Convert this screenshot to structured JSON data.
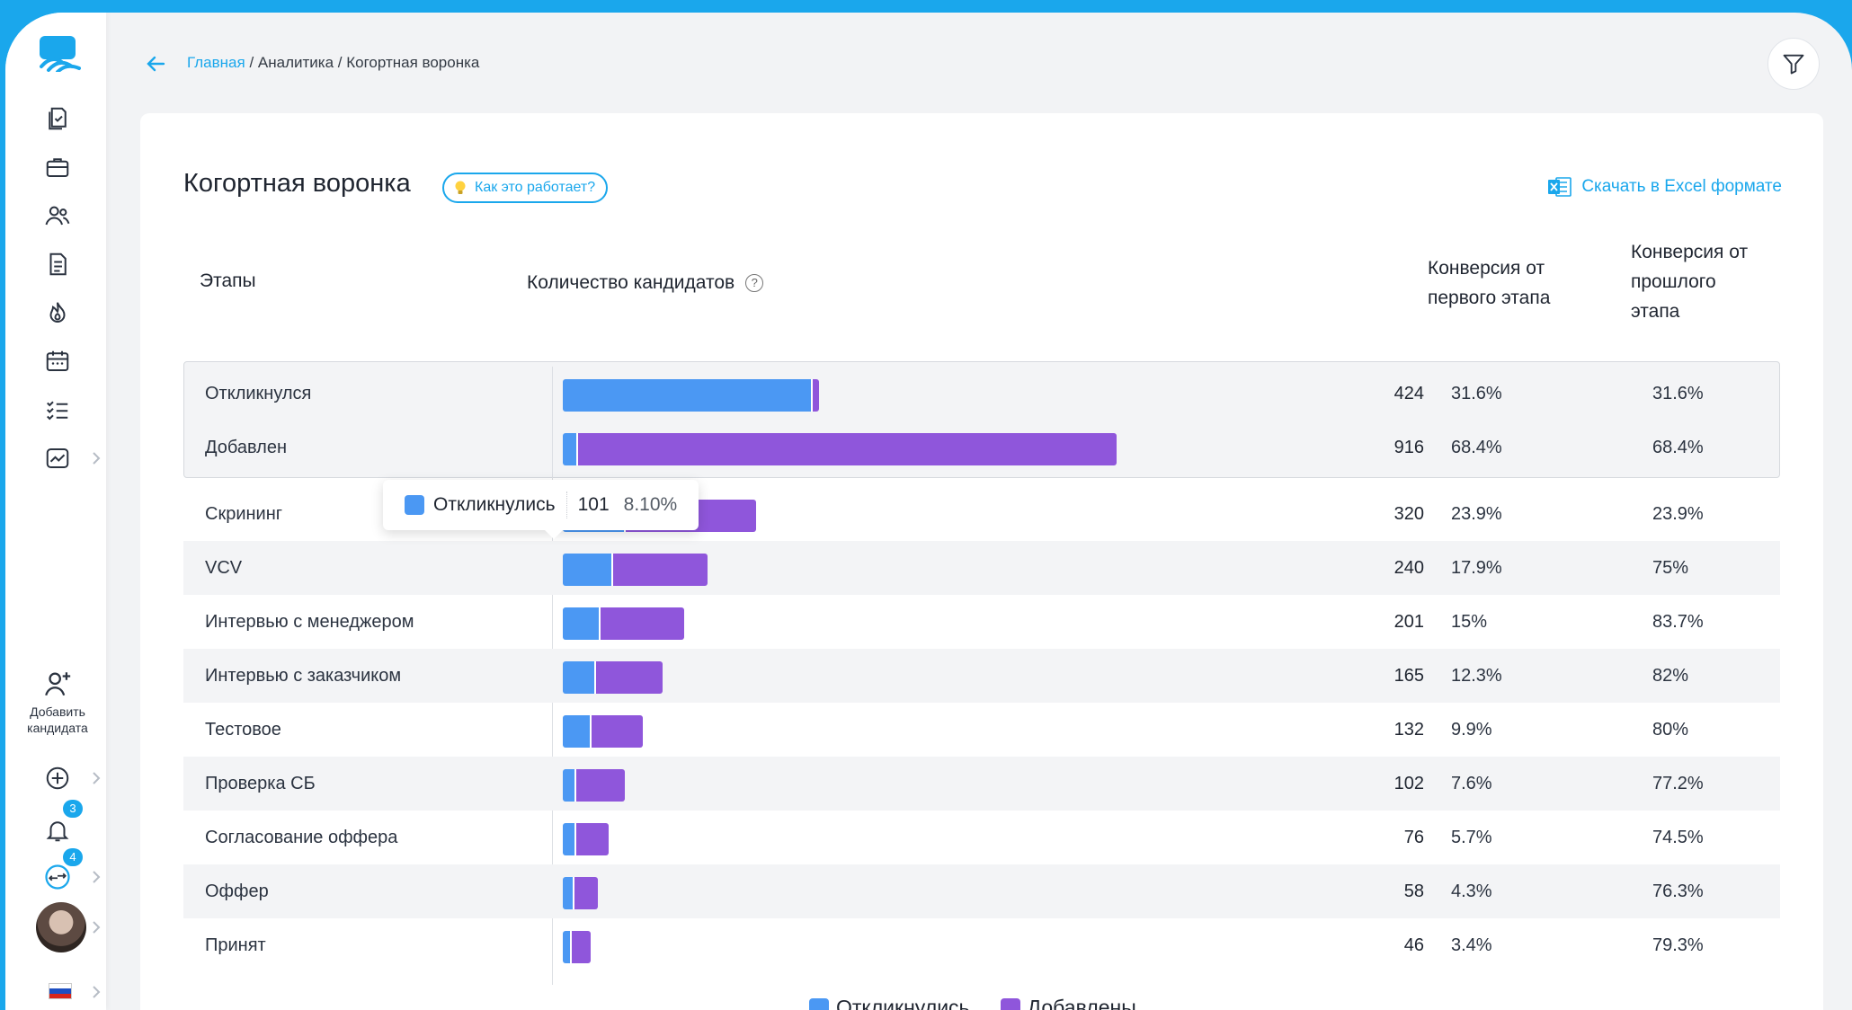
{
  "breadcrumb": {
    "home": "Главная",
    "sep1": " / ",
    "analytics": "Аналитика",
    "sep2": " / ",
    "current": "Когортная воронка"
  },
  "sidebar": {
    "add_candidate_label_1": "Добавить",
    "add_candidate_label_2": "кандидата",
    "notifications_badge": "3",
    "chat_badge": "4"
  },
  "page": {
    "title": "Когортная воронка",
    "how_it_works": "Как это работает?",
    "excel_download": "Скачать в Excel формате"
  },
  "table": {
    "header_stages": "Этапы",
    "header_count": "Количество кандидатов",
    "header_conv_first_1": "Конверсия от",
    "header_conv_first_2": "первого этапа",
    "header_conv_prev_1": "Конверсия от",
    "header_conv_prev_2": "прошлого",
    "header_conv_prev_3": "этапа"
  },
  "tooltip": {
    "label": "Откликнулись",
    "value": "101",
    "percent": "8.10%"
  },
  "colors": {
    "accent": "#1aa7ec",
    "responded": "#4b98f3",
    "added": "#8f56db"
  },
  "chart_data": {
    "type": "bar",
    "orientation": "horizontal",
    "stacked": true,
    "categories": [
      "Откликнулся",
      "Добавлен",
      "Скрининг",
      "VCV",
      "Интервью с менеджером",
      "Интервью с заказчиком",
      "Тестовое",
      "Проверка СБ",
      "Согласование оффера",
      "Оффер",
      "Принят"
    ],
    "totals": [
      "424",
      "916",
      "320",
      "240",
      "201",
      "165",
      "132",
      "102",
      "76",
      "58",
      "46"
    ],
    "conv_first": [
      "31.6%",
      "68.4%",
      "23.9%",
      "17.9%",
      "15%",
      "12.3%",
      "9.9%",
      "7.6%",
      "5.7%",
      "4.3%",
      "3.4%"
    ],
    "conv_prev": [
      "31.6%",
      "68.4%",
      "23.9%",
      "75%",
      "83.7%",
      "82%",
      "80%",
      "77.2%",
      "74.5%",
      "76.3%",
      "79.3%"
    ],
    "series": [
      {
        "name": "Откликнулись",
        "values": [
          410,
          22,
          101,
          80,
          60,
          52,
          45,
          20,
          20,
          16,
          12
        ]
      },
      {
        "name": "Добавлены",
        "values": [
          14,
          894,
          219,
          160,
          141,
          113,
          87,
          82,
          56,
          42,
          34
        ]
      }
    ],
    "legend": [
      "Откликнулись",
      "Добавлены"
    ],
    "legend_position": "bottom"
  }
}
